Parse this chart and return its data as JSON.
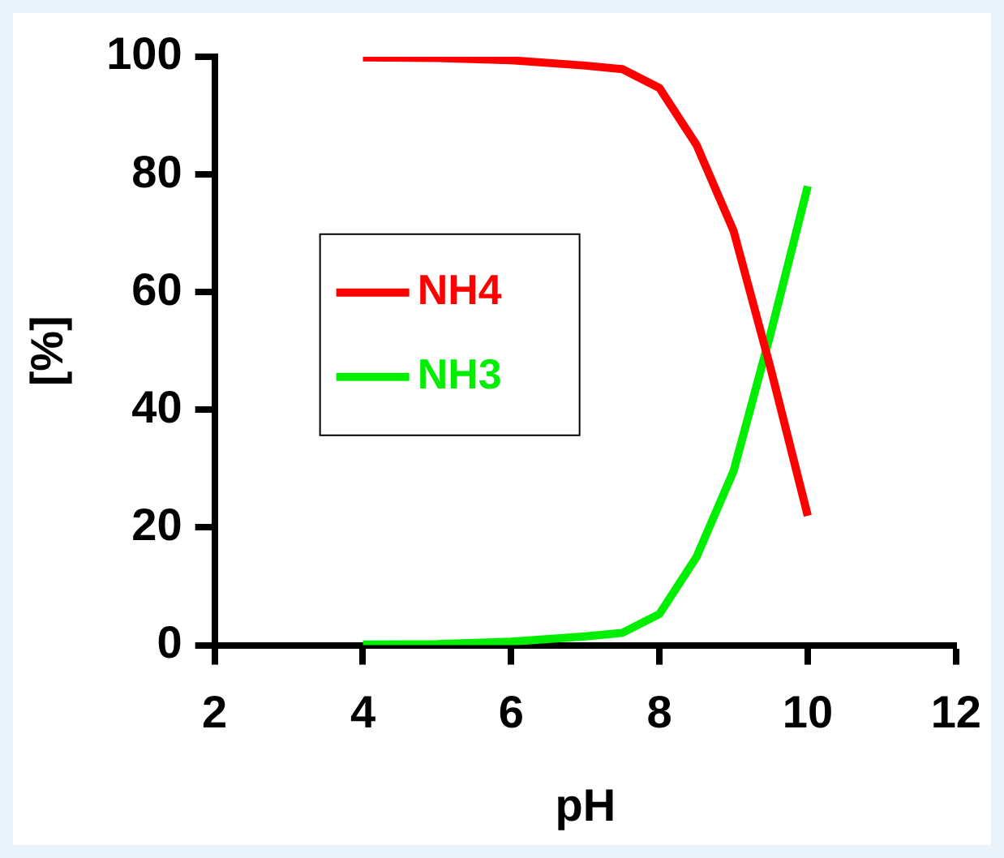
{
  "chart_data": {
    "type": "line",
    "xlabel": "pH",
    "ylabel": "[%]",
    "x": [
      4,
      5,
      6,
      7,
      7.5,
      8,
      8.5,
      9,
      9.5,
      10
    ],
    "xlim": [
      2,
      12
    ],
    "xticks": [
      2,
      4,
      6,
      8,
      10,
      12
    ],
    "ylim": [
      0,
      100
    ],
    "yticks": [
      0,
      20,
      40,
      60,
      80,
      100
    ],
    "series": [
      {
        "name": "NH4",
        "color": "#ff0000",
        "values": [
          99.9,
          99.8,
          99.4,
          98.5,
          97.9,
          94.7,
          85,
          70.4,
          47,
          22
        ]
      },
      {
        "name": "NH3",
        "color": "#00ee00",
        "values": [
          0.1,
          0.2,
          0.6,
          1.5,
          2.1,
          5.3,
          15,
          29.6,
          53,
          78
        ]
      }
    ],
    "grid": false,
    "legend": "left",
    "marker": "none",
    "line_style": "solid"
  }
}
